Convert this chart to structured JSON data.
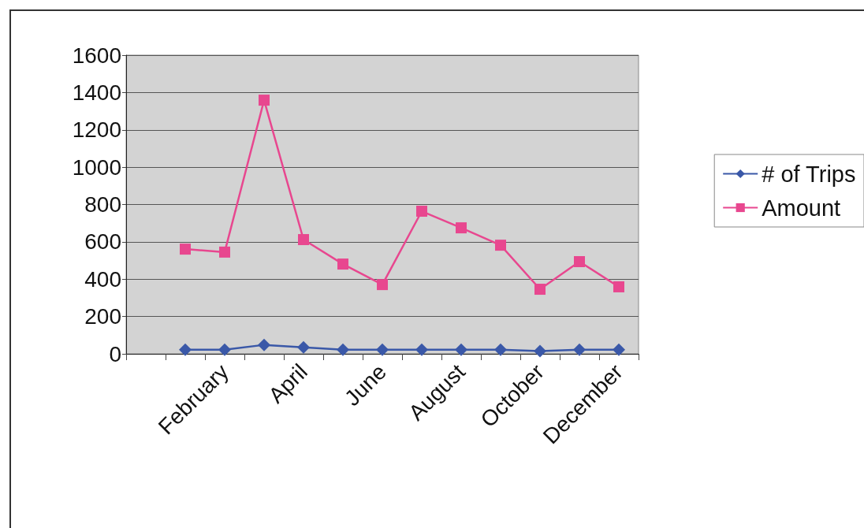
{
  "chart_data": {
    "type": "line",
    "categories": [
      null,
      null,
      "February",
      null,
      "April",
      null,
      "June",
      null,
      "August",
      null,
      "October",
      null,
      "December"
    ],
    "series": [
      {
        "name": "# of Trips",
        "color": "#3a58a8",
        "marker": "diamond",
        "values": [
          null,
          22,
          22,
          48,
          35,
          22,
          22,
          22,
          22,
          22,
          15,
          22,
          22
        ]
      },
      {
        "name": "Amount",
        "color": "#e8478f",
        "marker": "square",
        "values": [
          null,
          561,
          545,
          1359,
          612,
          481,
          371,
          764,
          675,
          582,
          346,
          494,
          359
        ]
      }
    ],
    "ylim": [
      0,
      1600
    ],
    "yticks": [
      0,
      200,
      400,
      600,
      800,
      1000,
      1200,
      1400,
      1600
    ],
    "grid": "y",
    "legend": "right",
    "line_style": "solid"
  }
}
